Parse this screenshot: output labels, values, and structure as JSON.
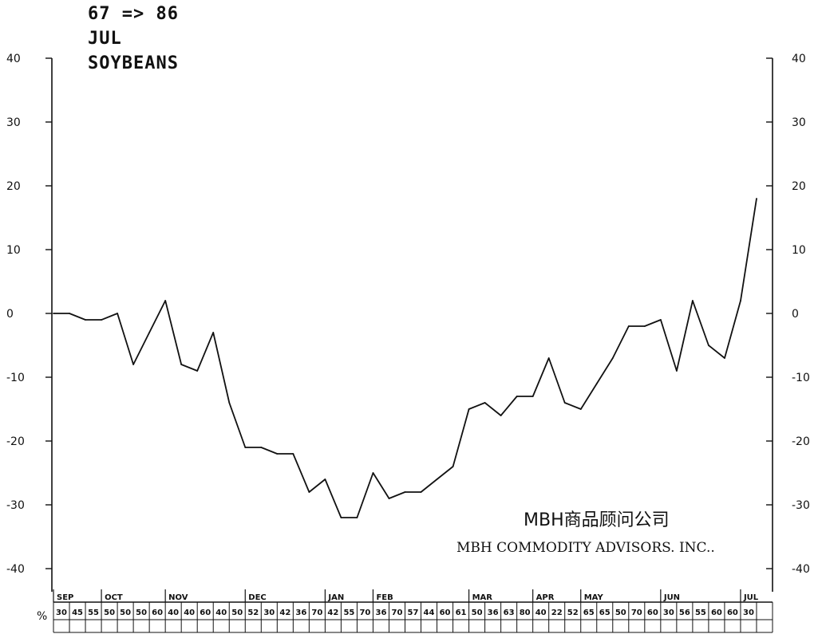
{
  "header": {
    "years": "67 => 86",
    "contract": "JUL",
    "commodity": "SOYBEANS"
  },
  "company": {
    "name_cn": "MBH商品顾问公司",
    "name_en": "MBH COMMODITY ADVISORS. INC.."
  },
  "colors": {
    "ink": "#111111",
    "background": "#ffffff"
  },
  "chart_data": {
    "type": "line",
    "title": "",
    "xlabel": "",
    "ylabel": "",
    "ylim": [
      -40,
      40
    ],
    "y_ticks": [
      "40",
      "30",
      "20",
      "10",
      "0",
      "-10",
      "-20",
      "-30",
      "-40"
    ],
    "y_tick_values": [
      40,
      30,
      20,
      10,
      0,
      -10,
      -20,
      -30,
      -40
    ],
    "grid": false,
    "months": [
      "SEP",
      "OCT",
      "NOV",
      "DEC",
      "JAN",
      "FEB",
      "MAR",
      "APR",
      "MAY",
      "JUN",
      "JUL"
    ],
    "month_start_index": [
      0,
      3,
      7,
      12,
      17,
      20,
      26,
      30,
      33,
      38,
      43
    ],
    "row_label": "%",
    "percent_row": [
      "30",
      "45",
      "55",
      "50",
      "50",
      "50",
      "60",
      "40",
      "40",
      "60",
      "40",
      "50",
      "52",
      "30",
      "42",
      "36",
      "70",
      "42",
      "55",
      "70",
      "36",
      "70",
      "57",
      "44",
      "60",
      "61",
      "50",
      "36",
      "63",
      "80",
      "40",
      "22",
      "52",
      "65",
      "65",
      "50",
      "70",
      "60",
      "30",
      "56",
      "55",
      "60",
      "60",
      "30"
    ],
    "values": [
      0,
      0,
      -1,
      -1,
      0,
      -8,
      -3,
      2,
      -8,
      -9,
      -3,
      -14,
      -21,
      -21,
      -22,
      -22,
      -28,
      -26,
      -32,
      -32,
      -25,
      -29,
      -28,
      -28,
      -26,
      -24,
      -15,
      -14,
      -16,
      -13,
      -13,
      -7,
      -14,
      -15,
      -11,
      -7,
      -2,
      -2,
      -1,
      -9,
      2,
      -5,
      -7,
      2,
      18
    ],
    "series": [
      {
        "values_ref": "values"
      }
    ]
  }
}
